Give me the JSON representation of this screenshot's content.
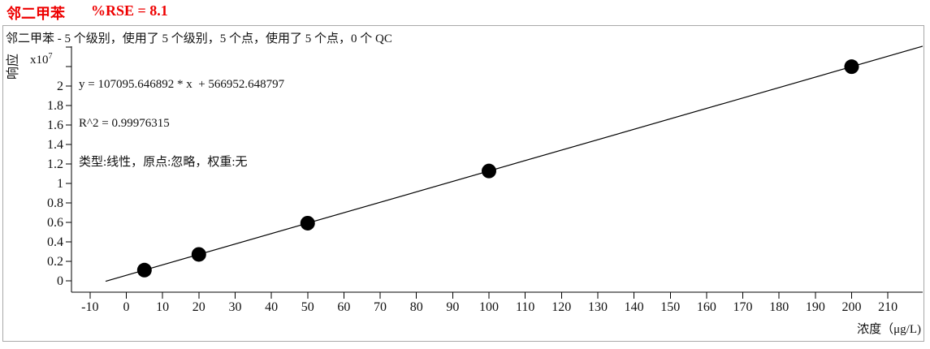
{
  "header": {
    "compound": "邻二甲苯",
    "rse": "%RSE = 8.1",
    "title_color": "#ee0000"
  },
  "chart_data": {
    "type": "scatter",
    "title": "邻二甲苯  %RSE = 8.1",
    "subtitle": "邻二甲苯 - 5 个级别，使用了 5 个级别，5 个点，使用了 5 个点，0 个 QC",
    "annotations": {
      "equation": "y = 107095.646892 * x  + 566952.648797",
      "r_squared": "R^2 = 0.99976315",
      "fit_type": "类型:线性，原点:忽略，权重:无"
    },
    "xlabel": "浓度（μg/L)",
    "ylabel": "响应",
    "y_scale": {
      "mantissa": "x10",
      "exponent": "7"
    },
    "x": [
      5,
      20,
      50,
      100,
      200
    ],
    "y": [
      1102431,
      2708866,
      5921735,
      11276517,
      21986082
    ],
    "fit": {
      "slope": 107095.646892,
      "intercept": 566952.648797,
      "r2": 0.99976315,
      "rse_percent": 8.1
    },
    "xlim": [
      -15.1,
      219.6
    ],
    "ylim": [
      0,
      24400000
    ],
    "x_ticks": [
      -10,
      0,
      10,
      20,
      30,
      40,
      50,
      60,
      70,
      80,
      90,
      100,
      110,
      120,
      130,
      140,
      150,
      160,
      170,
      180,
      190,
      200,
      210
    ],
    "y_ticks": [
      {
        "value": 0,
        "label": "0"
      },
      {
        "value": 2000000,
        "label": "0.2"
      },
      {
        "value": 4000000,
        "label": "0.4"
      },
      {
        "value": 6000000,
        "label": "0.6"
      },
      {
        "value": 8000000,
        "label": "0.8"
      },
      {
        "value": 10000000,
        "label": "1"
      },
      {
        "value": 12000000,
        "label": "1.2"
      },
      {
        "value": 14000000,
        "label": "1.4"
      },
      {
        "value": 16000000,
        "label": "1.6"
      },
      {
        "value": 18000000,
        "label": "1.8"
      },
      {
        "value": 20000000,
        "label": "2"
      }
    ],
    "y_minor_ticks": [
      22000000,
      24000000
    ],
    "grid": false,
    "legend": false,
    "marker": {
      "shape": "circle",
      "color": "#000000",
      "radius": 9
    },
    "line_color": "#000000",
    "axis_color": "#000000"
  }
}
